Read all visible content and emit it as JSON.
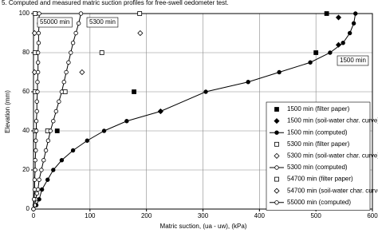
{
  "chart_data": {
    "type": "scatter",
    "title": "5. Computed and measured matric suction profiles for free-swell oedometer test.",
    "x_label": "Matric suction, (ua - uw), (kPa)",
    "y_label": "Elevation (mm)",
    "xlim": [
      0,
      600
    ],
    "xticks": [
      0,
      100,
      200,
      300,
      400,
      500,
      600
    ],
    "ylim": [
      0,
      100
    ],
    "yticks": [
      0,
      20,
      40,
      60,
      80,
      100
    ],
    "grid": true,
    "legend": "lower right",
    "annotations": [
      "55000 min",
      "5300 min",
      "1500 min"
    ],
    "series": [
      {
        "name": "1500 min (filter paper)",
        "color": "#000000",
        "marker": "square",
        "filled": true,
        "line": false,
        "x": [
          519,
          500,
          178,
          42
        ],
        "values": [
          100,
          80,
          60,
          40
        ]
      },
      {
        "name": "1500 min (soil-water char. curve)",
        "color": "#000000",
        "marker": "diamond",
        "filled": true,
        "line": false,
        "x": [
          540,
          540,
          225
        ],
        "values": [
          98,
          84,
          50
        ]
      },
      {
        "name": "1500 min (computed)",
        "color": "#000000",
        "marker": "circle",
        "filled": true,
        "line": true,
        "x": [
          0,
          5,
          10,
          15,
          25,
          35,
          50,
          70,
          95,
          125,
          165,
          225,
          305,
          380,
          435,
          490,
          525,
          548,
          560,
          567,
          570
        ],
        "values": [
          0,
          2,
          5,
          10,
          15,
          20,
          25,
          30,
          35,
          40,
          45,
          50,
          60,
          65,
          70,
          75,
          80,
          85,
          90,
          95,
          100
        ]
      },
      {
        "name": "5300 min (filter paper)",
        "color": "#000000",
        "marker": "square",
        "filled": false,
        "line": false,
        "x": [
          188,
          121,
          56,
          25
        ],
        "values": [
          100,
          80,
          60,
          40
        ]
      },
      {
        "name": "5300 min (soil-water char. curve)",
        "color": "#000000",
        "marker": "diamond",
        "filled": false,
        "line": false,
        "x": [
          189,
          86
        ],
        "values": [
          90,
          70
        ]
      },
      {
        "name": "5300 min (computed)",
        "color": "#000000",
        "marker": "circle",
        "filled": false,
        "line": true,
        "x": [
          0,
          2,
          4,
          6,
          8,
          10,
          14,
          18,
          22,
          26,
          30,
          35,
          40,
          45,
          50,
          54,
          58,
          62,
          66,
          70,
          75,
          80,
          84
        ],
        "values": [
          0,
          2,
          5,
          8,
          10,
          15,
          20,
          25,
          30,
          35,
          40,
          45,
          50,
          55,
          60,
          65,
          70,
          75,
          80,
          85,
          90,
          95,
          100
        ]
      },
      {
        "name": "54700 min (filter paper)",
        "color": "#000000",
        "marker": "square",
        "filled": false,
        "line": false,
        "x": [
          3,
          3,
          3,
          3
        ],
        "values": [
          100,
          80,
          60,
          40
        ]
      },
      {
        "name": "54700 min (soil-water char. curve)",
        "color": "#000000",
        "marker": "diamond",
        "filled": false,
        "line": false,
        "x": [
          2,
          2
        ],
        "values": [
          90,
          70
        ]
      },
      {
        "name": "55000 min (computed)",
        "color": "#000000",
        "marker": "circle",
        "filled": false,
        "line": true,
        "x": [
          0,
          1,
          2,
          2,
          3,
          3,
          4,
          4,
          5,
          5,
          6,
          6,
          7,
          7,
          8,
          8,
          8,
          9,
          9,
          10,
          10
        ],
        "values": [
          0,
          5,
          10,
          15,
          20,
          25,
          30,
          35,
          40,
          45,
          50,
          55,
          60,
          65,
          70,
          75,
          80,
          85,
          90,
          95,
          100
        ]
      }
    ]
  }
}
